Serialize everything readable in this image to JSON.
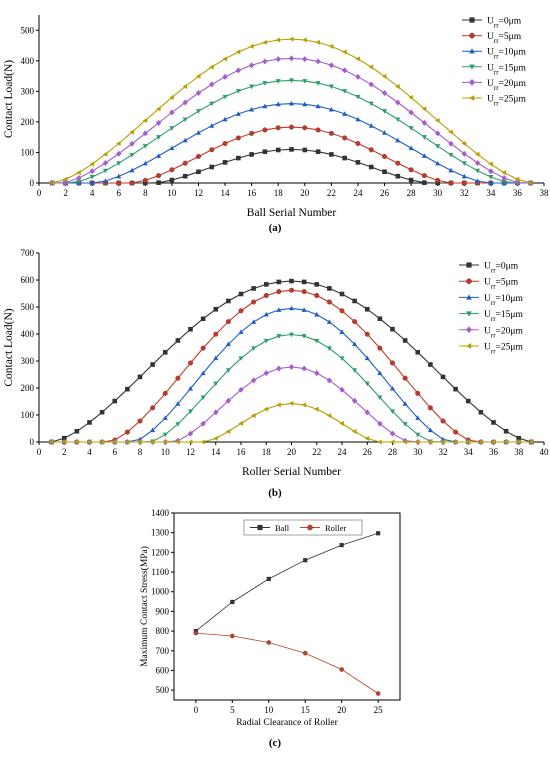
{
  "chart_data": [
    {
      "panel": "(a)",
      "type": "line",
      "xlabel": "Ball Serial Number",
      "ylabel": "Contact Load(N)",
      "xlim": [
        0,
        38
      ],
      "ylim": [
        0,
        550
      ],
      "xticks": [
        0,
        2,
        4,
        6,
        8,
        10,
        12,
        14,
        16,
        18,
        20,
        22,
        24,
        26,
        28,
        30,
        32,
        34,
        36,
        38
      ],
      "yticks": [
        0,
        100,
        200,
        300,
        400,
        500
      ],
      "legend_position": "top-right",
      "series": [
        {
          "name": "U",
          "sub": "rr",
          "suffix": "=0μm",
          "color": "#333333",
          "marker": "square",
          "model": "cos",
          "center": 19,
          "peak": 110,
          "half_width": 10.3
        },
        {
          "name": "U",
          "sub": "rr",
          "suffix": "=5μm",
          "color": "#c0392b",
          "marker": "circle",
          "model": "cos",
          "center": 19,
          "peak": 183,
          "half_width": 12.0
        },
        {
          "name": "U",
          "sub": "rr",
          "suffix": "=10μm",
          "color": "#1f5fc2",
          "marker": "triangle-up",
          "model": "cos",
          "center": 19,
          "peak": 260,
          "half_width": 14.8
        },
        {
          "name": "U",
          "sub": "rr",
          "suffix": "=15μm",
          "color": "#2e9e6b",
          "marker": "triangle-down",
          "model": "cos",
          "center": 19,
          "peak": 336,
          "half_width": 16.6
        },
        {
          "name": "U",
          "sub": "rr",
          "suffix": "=20μm",
          "color": "#a55ccf",
          "marker": "diamond",
          "model": "cos",
          "center": 19,
          "peak": 408,
          "half_width": 17.3
        },
        {
          "name": "U",
          "sub": "rr",
          "suffix": "=25μm",
          "color": "#b5a000",
          "marker": "triangle-left",
          "model": "cos",
          "center": 19,
          "peak": 471,
          "half_width": 18.0
        }
      ]
    },
    {
      "panel": "(b)",
      "type": "line",
      "xlabel": "Roller Serial Number",
      "ylabel": "Contact Load(N)",
      "xlim": [
        0,
        40
      ],
      "ylim": [
        0,
        700
      ],
      "xticks": [
        0,
        2,
        4,
        6,
        8,
        10,
        12,
        14,
        16,
        18,
        20,
        22,
        24,
        26,
        28,
        30,
        32,
        34,
        36,
        38,
        40
      ],
      "yticks": [
        0,
        100,
        200,
        300,
        400,
        500,
        600,
        700
      ],
      "legend_position": "right",
      "series": [
        {
          "name": "U",
          "sub": "rr",
          "suffix": "=0μm",
          "color": "#333333",
          "marker": "square",
          "model": "cos",
          "center": 20,
          "peak": 596,
          "half_width": 19.0
        },
        {
          "name": "U",
          "sub": "rr",
          "suffix": "=5μm",
          "color": "#c0392b",
          "marker": "circle",
          "model": "cos",
          "center": 20,
          "peak": 562,
          "half_width": 14.5
        },
        {
          "name": "U",
          "sub": "rr",
          "suffix": "=10μm",
          "color": "#1f5fc2",
          "marker": "triangle-up",
          "model": "cos",
          "center": 20,
          "peak": 495,
          "half_width": 12.6
        },
        {
          "name": "U",
          "sub": "rr",
          "suffix": "=15μm",
          "color": "#2e9e6b",
          "marker": "triangle-down",
          "model": "cos",
          "center": 20,
          "peak": 398,
          "half_width": 11.2
        },
        {
          "name": "U",
          "sub": "rr",
          "suffix": "=20μm",
          "color": "#a55ccf",
          "marker": "diamond",
          "model": "cos",
          "center": 20,
          "peak": 278,
          "half_width": 9.4
        },
        {
          "name": "U",
          "sub": "rr",
          "suffix": "=25μm",
          "color": "#b5a000",
          "marker": "triangle-left",
          "model": "cos",
          "center": 20,
          "peak": 143,
          "half_width": 6.9
        }
      ]
    },
    {
      "panel": "(c)",
      "type": "line",
      "xlabel": "Radial Clearance of Roller",
      "ylabel": "Maximum Contact Stress(MPa)",
      "xlim": [
        -3,
        28
      ],
      "ylim": [
        450,
        1400
      ],
      "xticks": [
        0,
        5,
        10,
        15,
        20,
        25
      ],
      "yticks": [
        500,
        600,
        700,
        800,
        900,
        1000,
        1100,
        1200,
        1300,
        1400
      ],
      "legend_position": "top-center",
      "x": [
        0,
        5,
        10,
        15,
        20,
        25
      ],
      "series": [
        {
          "name": "Ball",
          "color": "#333333",
          "marker": "square",
          "values": [
            800,
            948,
            1065,
            1160,
            1237,
            1297
          ]
        },
        {
          "name": "Roller",
          "color": "#b5452b",
          "marker": "circle",
          "values": [
            790,
            775,
            742,
            688,
            605,
            483
          ]
        }
      ]
    }
  ]
}
